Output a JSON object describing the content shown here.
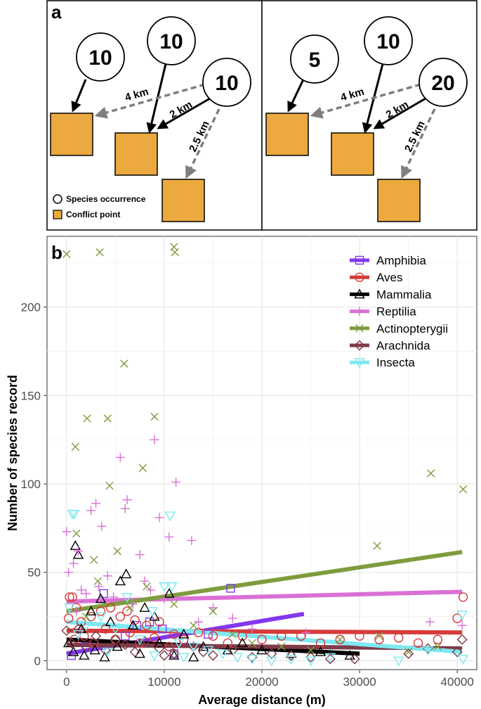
{
  "panel_a": {
    "letter": "a",
    "left": {
      "circles": [
        {
          "value": "10"
        },
        {
          "value": "10"
        },
        {
          "value": "10"
        }
      ],
      "distances": [
        "4 km",
        "2 km",
        "2.5 km"
      ]
    },
    "right": {
      "circles": [
        {
          "value": "5"
        },
        {
          "value": "10"
        },
        {
          "value": "20"
        }
      ],
      "distances": [
        "4 km",
        "2 km",
        "2.5 km"
      ]
    },
    "legend": {
      "species": "Species occurrence",
      "conflict": "Conflict point"
    },
    "colors": {
      "square": "#EBA93F",
      "arrow_solid": "#000000",
      "arrow_dashed": "#7F7F7F"
    }
  },
  "chart_data": {
    "type": "scatter",
    "panel_letter": "b",
    "title": "",
    "xlabel": "Average distance (m)",
    "ylabel": "Number of species record",
    "xlim": [
      -2000,
      42000
    ],
    "ylim": [
      -5,
      240
    ],
    "xticks": [
      0,
      10000,
      20000,
      30000,
      40000
    ],
    "xtick_labels": [
      "0",
      "10000",
      "20000",
      "30000",
      "40000"
    ],
    "yticks": [
      0,
      50,
      100,
      150,
      200
    ],
    "ytick_labels": [
      "0",
      "50",
      "100",
      "150",
      "200"
    ],
    "grid": true,
    "legend_position": "top-right",
    "series": [
      {
        "name": "Amphibia",
        "color": "#8338EC",
        "shape": "square",
        "trend": [
          [
            0,
            4
          ],
          [
            24300,
            26.5
          ]
        ],
        "points": [
          [
            3800,
            38
          ],
          [
            8500,
            22
          ],
          [
            9800,
            18
          ],
          [
            12000,
            12
          ],
          [
            14500,
            15
          ],
          [
            16800,
            41
          ],
          [
            6000,
            14
          ],
          [
            2000,
            8
          ],
          [
            11000,
            4
          ],
          [
            500,
            3
          ],
          [
            7200,
            20
          ]
        ]
      },
      {
        "name": "Aves",
        "color": "#D63B3B",
        "shape": "circle",
        "trend": [
          [
            0,
            17
          ],
          [
            40500,
            16
          ]
        ],
        "points": [
          [
            300,
            36
          ],
          [
            600,
            36
          ],
          [
            1000,
            30
          ],
          [
            1500,
            22
          ],
          [
            2500,
            25
          ],
          [
            3500,
            28
          ],
          [
            4500,
            30
          ],
          [
            5500,
            25
          ],
          [
            6200,
            28
          ],
          [
            7000,
            23
          ],
          [
            8200,
            20
          ],
          [
            9500,
            22
          ],
          [
            11000,
            15
          ],
          [
            12000,
            12
          ],
          [
            13500,
            16
          ],
          [
            15000,
            14
          ],
          [
            16500,
            10
          ],
          [
            18000,
            14
          ],
          [
            20000,
            12
          ],
          [
            22000,
            14
          ],
          [
            24000,
            14
          ],
          [
            26000,
            10
          ],
          [
            28000,
            12
          ],
          [
            30000,
            14
          ],
          [
            32000,
            12
          ],
          [
            34000,
            13
          ],
          [
            36000,
            10
          ],
          [
            38000,
            12
          ],
          [
            40000,
            24
          ],
          [
            40600,
            36
          ],
          [
            800,
            12
          ],
          [
            1800,
            14
          ],
          [
            2800,
            10
          ],
          [
            4000,
            18
          ],
          [
            5000,
            12
          ],
          [
            6500,
            16
          ],
          [
            7500,
            10
          ],
          [
            9000,
            13
          ],
          [
            10500,
            8
          ],
          [
            200,
            24
          ]
        ]
      },
      {
        "name": "Mammalia",
        "color": "#000000",
        "shape": "triangle",
        "trend": [
          [
            0,
            12
          ],
          [
            30000,
            4
          ]
        ],
        "points": [
          [
            900,
            65
          ],
          [
            1200,
            60
          ],
          [
            5500,
            45
          ],
          [
            6100,
            49
          ],
          [
            10500,
            38
          ],
          [
            9000,
            25
          ],
          [
            8000,
            30
          ],
          [
            3500,
            35
          ],
          [
            2500,
            28
          ],
          [
            4500,
            22
          ],
          [
            1500,
            18
          ],
          [
            6800,
            20
          ],
          [
            12000,
            15
          ],
          [
            14000,
            8
          ],
          [
            16500,
            6
          ],
          [
            18000,
            10
          ],
          [
            20000,
            6
          ],
          [
            23000,
            4
          ],
          [
            26000,
            5
          ],
          [
            29000,
            3
          ],
          [
            200,
            10
          ],
          [
            700,
            5
          ],
          [
            1800,
            3
          ],
          [
            2900,
            6
          ],
          [
            3900,
            2
          ],
          [
            5200,
            8
          ],
          [
            7500,
            4
          ],
          [
            9500,
            10
          ],
          [
            11000,
            3
          ],
          [
            13000,
            2
          ]
        ]
      },
      {
        "name": "Reptilia",
        "color": "#DA70D6",
        "shape": "plus",
        "trend": [
          [
            0,
            33.5
          ],
          [
            40500,
            39
          ]
        ],
        "points": [
          [
            0,
            73
          ],
          [
            200,
            50
          ],
          [
            1200,
            62
          ],
          [
            2500,
            85
          ],
          [
            3000,
            89
          ],
          [
            3600,
            76
          ],
          [
            5500,
            115
          ],
          [
            6200,
            91
          ],
          [
            6000,
            86
          ],
          [
            9000,
            125
          ],
          [
            11200,
            101
          ],
          [
            10500,
            70
          ],
          [
            9500,
            81
          ],
          [
            7500,
            60
          ],
          [
            12800,
            68
          ],
          [
            4200,
            48
          ],
          [
            4800,
            36
          ],
          [
            2000,
            38
          ],
          [
            8000,
            45
          ],
          [
            8600,
            40
          ],
          [
            15000,
            30
          ],
          [
            17000,
            24
          ],
          [
            24500,
            16
          ],
          [
            37200,
            22
          ],
          [
            40500,
            20
          ],
          [
            1500,
            40
          ],
          [
            3300,
            42
          ],
          [
            6800,
            32
          ],
          [
            1000,
            28
          ],
          [
            10000,
            35
          ],
          [
            13500,
            22
          ],
          [
            19000,
            18
          ],
          [
            700,
            55
          ]
        ]
      },
      {
        "name": "Actinopterygii",
        "color": "#7E9C3E",
        "shape": "x",
        "trend": [
          [
            0,
            28
          ],
          [
            40500,
            61.5
          ]
        ],
        "points": [
          [
            0,
            230
          ],
          [
            3400,
            231
          ],
          [
            11000,
            234
          ],
          [
            11100,
            231
          ],
          [
            5900,
            168
          ],
          [
            2100,
            137
          ],
          [
            4200,
            137
          ],
          [
            9000,
            138
          ],
          [
            900,
            121
          ],
          [
            7800,
            109
          ],
          [
            4400,
            99
          ],
          [
            37300,
            106
          ],
          [
            40600,
            97
          ],
          [
            31800,
            65
          ],
          [
            2800,
            57
          ],
          [
            5200,
            62
          ],
          [
            1000,
            72
          ],
          [
            8200,
            42
          ],
          [
            11000,
            32
          ],
          [
            13000,
            20
          ],
          [
            15000,
            28
          ],
          [
            17000,
            15
          ],
          [
            19000,
            10
          ],
          [
            22000,
            8
          ],
          [
            25000,
            6
          ],
          [
            28000,
            12
          ],
          [
            32000,
            14
          ],
          [
            35000,
            5
          ],
          [
            38000,
            8
          ],
          [
            6500,
            30
          ],
          [
            3200,
            45
          ],
          [
            2000,
            25
          ]
        ]
      },
      {
        "name": "Arachnida",
        "color": "#7E3B48",
        "shape": "diamond",
        "trend": [
          [
            0,
            9
          ],
          [
            40500,
            7
          ]
        ],
        "points": [
          [
            0,
            17
          ],
          [
            500,
            10
          ],
          [
            1200,
            18
          ],
          [
            2000,
            8
          ],
          [
            3000,
            14
          ],
          [
            4000,
            6
          ],
          [
            5000,
            12
          ],
          [
            6000,
            9
          ],
          [
            7000,
            5
          ],
          [
            8000,
            11
          ],
          [
            9500,
            7
          ],
          [
            11000,
            4
          ],
          [
            13000,
            8
          ],
          [
            15000,
            3
          ],
          [
            17000,
            6
          ],
          [
            19000,
            2
          ],
          [
            21000,
            4
          ],
          [
            23000,
            3
          ],
          [
            25000,
            2
          ],
          [
            27000,
            1
          ],
          [
            29500,
            1
          ],
          [
            35000,
            4
          ],
          [
            37000,
            7
          ],
          [
            40500,
            12
          ],
          [
            40000,
            5
          ],
          [
            10000,
            3
          ],
          [
            14000,
            5
          ]
        ]
      },
      {
        "name": "Insecta",
        "color": "#7FE8F0",
        "shape": "invtriangle",
        "trend": [
          [
            0,
            22
          ],
          [
            40500,
            5
          ]
        ],
        "points": [
          [
            600,
            83
          ],
          [
            800,
            83
          ],
          [
            10600,
            82
          ],
          [
            10000,
            42
          ],
          [
            10800,
            42
          ],
          [
            6200,
            36
          ],
          [
            8800,
            28
          ],
          [
            3500,
            25
          ],
          [
            2000,
            20
          ],
          [
            5000,
            18
          ],
          [
            1200,
            15
          ],
          [
            7500,
            12
          ],
          [
            11500,
            10
          ],
          [
            13000,
            8
          ],
          [
            14500,
            6
          ],
          [
            16000,
            4
          ],
          [
            17500,
            2
          ],
          [
            19000,
            1
          ],
          [
            21000,
            0
          ],
          [
            23000,
            1
          ],
          [
            25000,
            0
          ],
          [
            27000,
            2
          ],
          [
            34000,
            0
          ],
          [
            37000,
            6
          ],
          [
            40500,
            26
          ],
          [
            40600,
            1
          ],
          [
            300,
            30
          ],
          [
            4200,
            5
          ],
          [
            9000,
            3
          ],
          [
            12000,
            2
          ]
        ]
      }
    ]
  }
}
